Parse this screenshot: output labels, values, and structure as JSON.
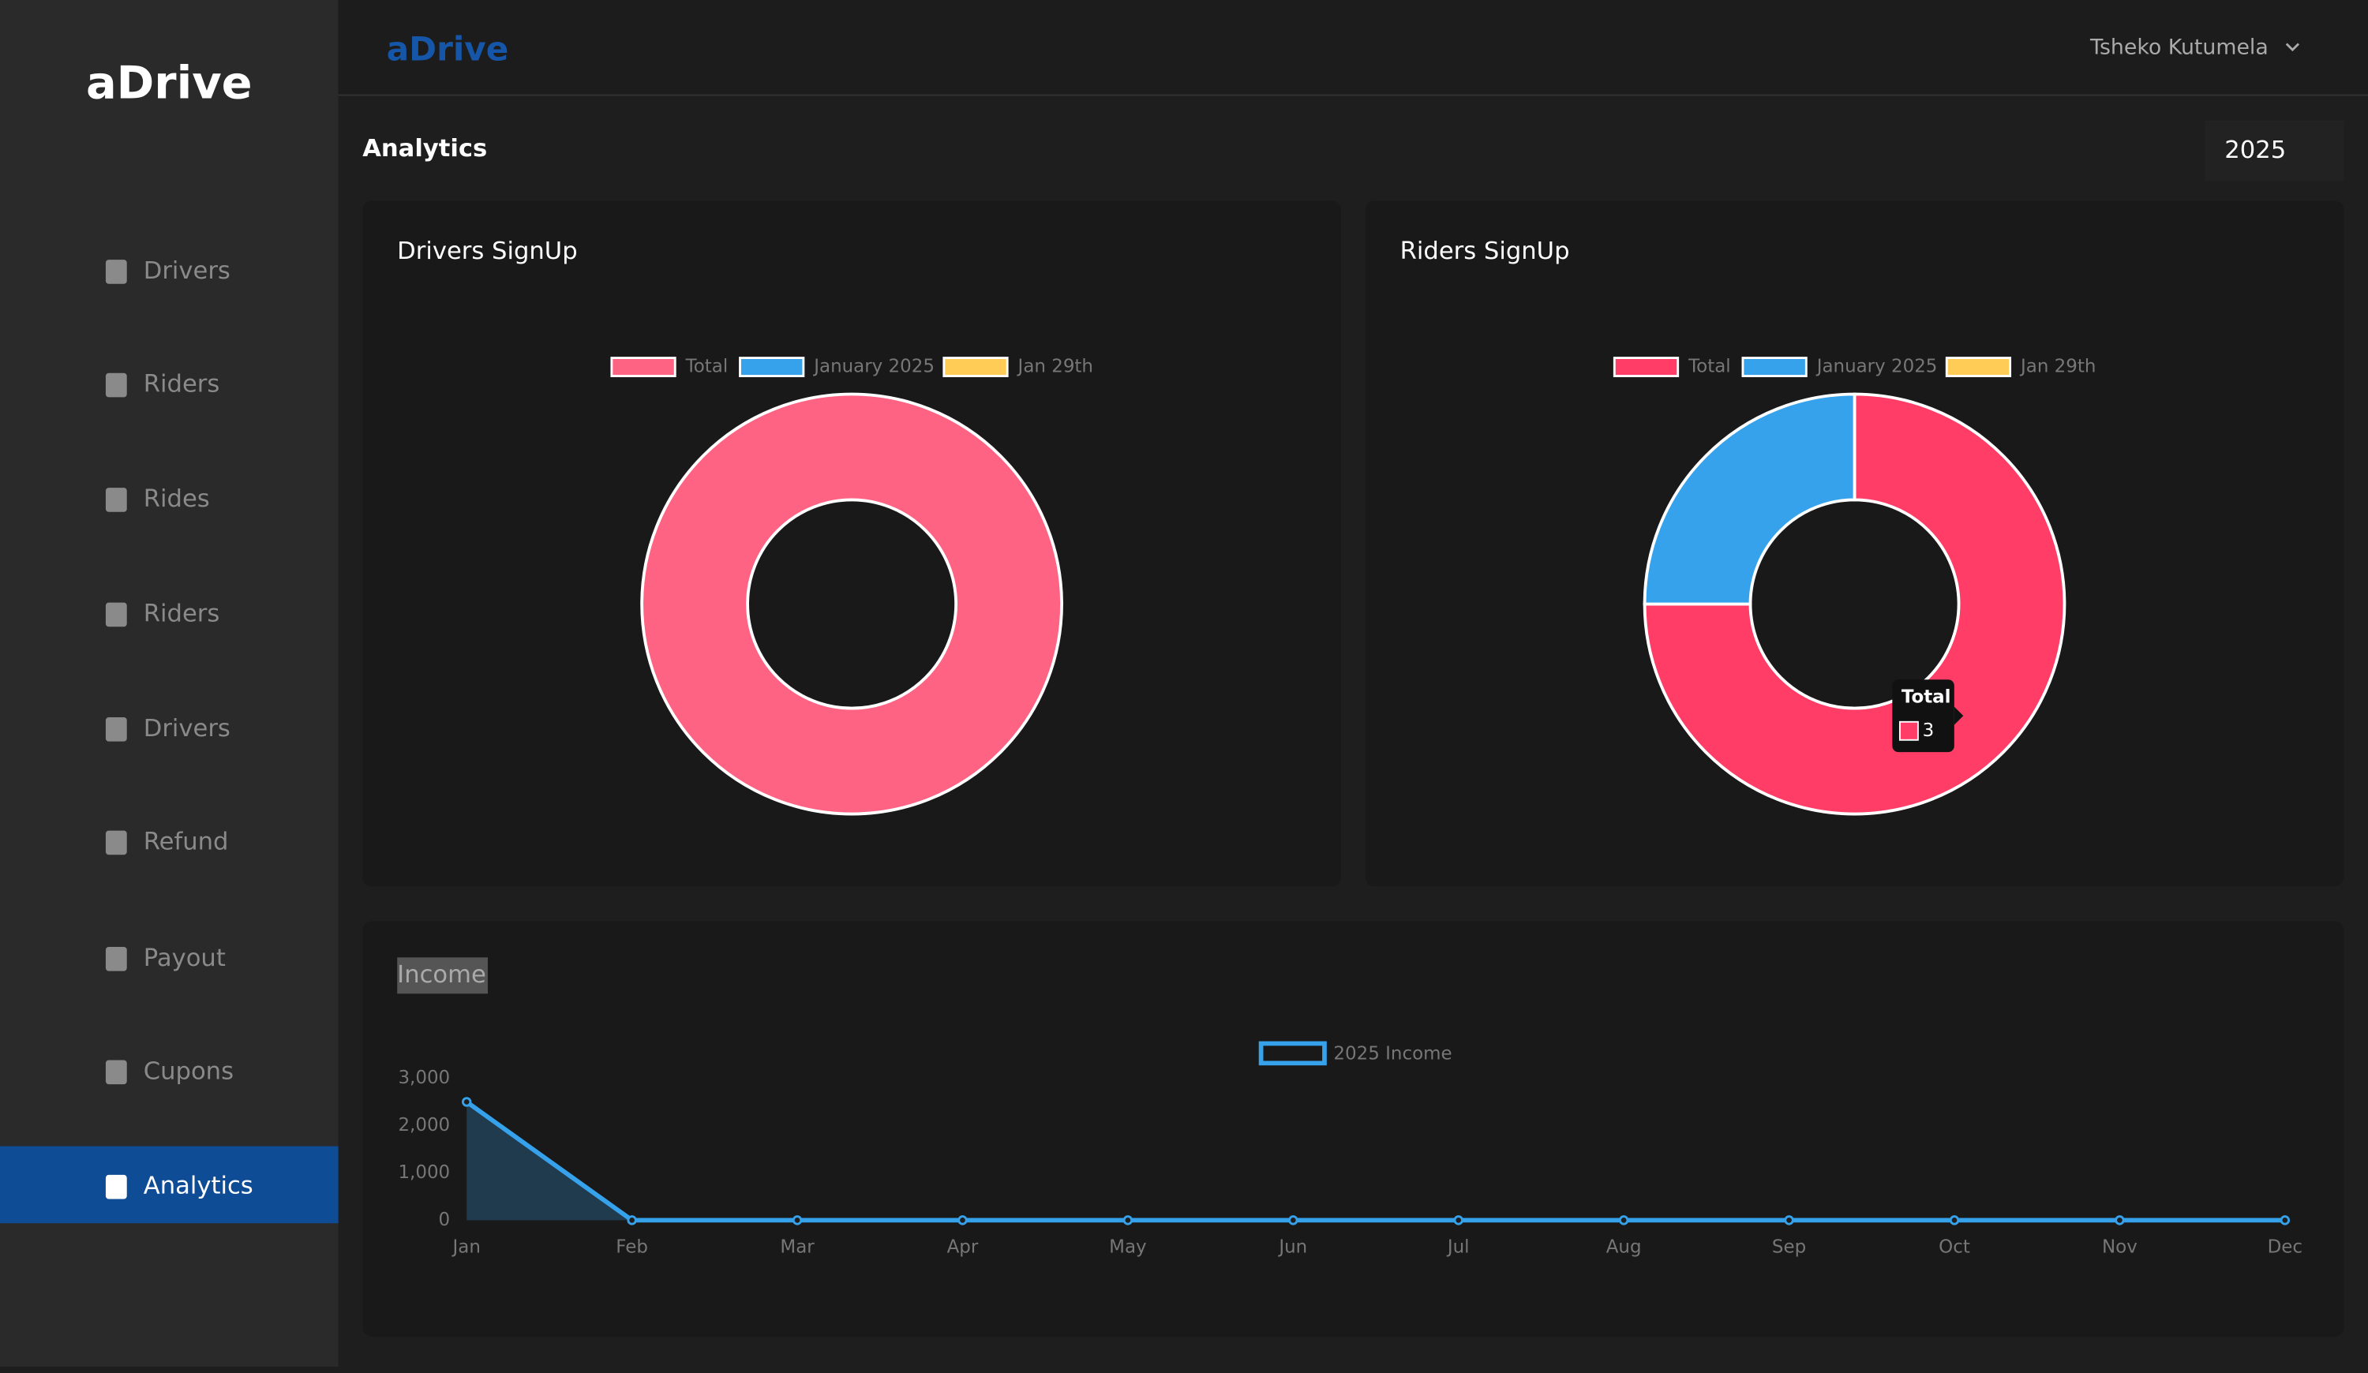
{
  "sidebar": {
    "brand": "aDrive",
    "nav": [
      "Drivers",
      "Riders",
      "Rides",
      "Riders",
      "Drivers",
      "Refund",
      "Payout",
      "Cupons",
      "Analytics"
    ]
  },
  "header": {
    "brand": "aDrive",
    "user": "Tsheko Kutumela"
  },
  "page": {
    "title": "Analytics",
    "year": "2025"
  },
  "chart_data": [
    {
      "type": "doughnut",
      "title": "Drivers SignUp",
      "categories": [
        "Total",
        "January 2025",
        "Jan 29th"
      ],
      "values": [
        1,
        0,
        0
      ],
      "colors": [
        "#ff6384",
        "#36a2eb",
        "#ffcd56"
      ]
    },
    {
      "type": "doughnut",
      "title": "Riders SignUp",
      "categories": [
        "Total",
        "January 2025",
        "Jan 29th"
      ],
      "values": [
        3,
        1,
        0
      ],
      "colors": [
        "#ff3d67",
        "#36a2eb",
        "#ffcd56"
      ]
    },
    {
      "type": "line",
      "title": "Income",
      "categories": [
        "Jan",
        "Feb",
        "Mar",
        "Apr",
        "May",
        "Jun",
        "Jul",
        "Aug",
        "Sep",
        "Oct",
        "Nov",
        "Dec"
      ],
      "series": [
        {
          "name": "2025 Income",
          "color": "#36a2eb",
          "values": [
            2500,
            0,
            0,
            0,
            0,
            0,
            0,
            0,
            0,
            0,
            0,
            0
          ]
        }
      ],
      "ylim": [
        0,
        3000
      ],
      "yticks": [
        0,
        {
          "value": 1000,
          "label": "1,000"
        },
        {
          "value": 2000,
          "label": "2,000"
        },
        {
          "value": 3000,
          "label": "3,000"
        }
      ]
    }
  ]
}
